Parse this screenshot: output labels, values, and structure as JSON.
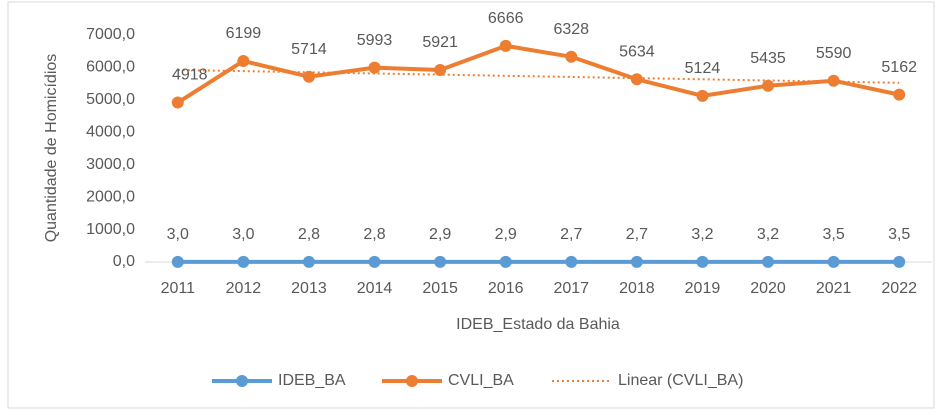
{
  "chart_data": {
    "type": "line",
    "y_axis_label": "Quantidade de Homicídios",
    "x_axis_label": "IDEB_Estado da Bahia",
    "categories": [
      "2011",
      "2012",
      "2013",
      "2014",
      "2015",
      "2016",
      "2017",
      "2018",
      "2019",
      "2020",
      "2021",
      "2022"
    ],
    "series": [
      {
        "name": "IDEB_BA",
        "color": "#5b9bd5",
        "style": "solid",
        "markers": true,
        "values": [
          3.0,
          3.0,
          2.8,
          2.8,
          2.9,
          2.9,
          2.7,
          2.7,
          3.2,
          3.2,
          3.5,
          3.5
        ],
        "value_labels": [
          "3,0",
          "3,0",
          "2,8",
          "2,8",
          "2,9",
          "2,9",
          "2,7",
          "2,7",
          "3,2",
          "3,2",
          "3,5",
          "3,5"
        ]
      },
      {
        "name": "CVLI_BA",
        "color": "#ed7d31",
        "style": "solid",
        "markers": true,
        "values": [
          4918,
          6199,
          5714,
          5993,
          5921,
          6666,
          6328,
          5634,
          5124,
          5435,
          5590,
          5162
        ]
      },
      {
        "name": "Linear (CVLI_BA)",
        "color": "#ed7d31",
        "style": "dotted",
        "markers": false,
        "values": [
          5922,
          5886,
          5850,
          5814,
          5778,
          5742,
          5706,
          5670,
          5634,
          5598,
          5562,
          5526
        ]
      }
    ],
    "ylim": [
      0,
      7000
    ],
    "yticks": [
      {
        "value": 0,
        "label": "0,0"
      },
      {
        "value": 1000,
        "label": "1000,0"
      },
      {
        "value": 2000,
        "label": "2000,0"
      },
      {
        "value": 3000,
        "label": "3000,0"
      },
      {
        "value": 4000,
        "label": "4000,0"
      },
      {
        "value": 5000,
        "label": "5000,0"
      },
      {
        "value": 6000,
        "label": "6000,0"
      },
      {
        "value": 7000,
        "label": "7000,0"
      }
    ],
    "legend": "bottom"
  }
}
